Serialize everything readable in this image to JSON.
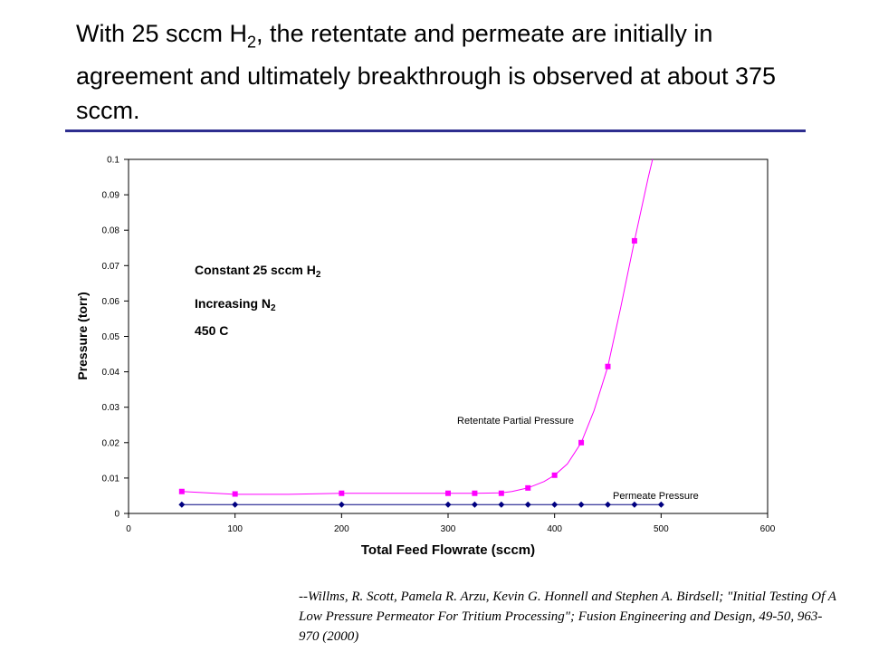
{
  "slide": {
    "title_pre": "With 25 sccm H",
    "title_sub": "2",
    "title_post": ", the retentate and permeate are initially in agreement and ultimately breakthrough is observed at about 375 sccm.",
    "citation": "--Willms, R. Scott, Pamela R. Arzu, Kevin G. Honnell and Stephen A. Birdsell; \"Initial Testing Of A Low Pressure Permeator For Tritium Processing\"; Fusion Engineering and Design, 49-50, 963-970 (2000)"
  },
  "annotations": {
    "line1_pre": "Constant 25 sccm H",
    "line1_sub": "2",
    "line2_pre": "Increasing N",
    "line2_sub": "2",
    "line3": "450 C"
  },
  "chart_data": {
    "type": "scatter",
    "xlabel": "Total Feed Flowrate (sccm)",
    "ylabel": "Pressure (torr)",
    "xlim": [
      0,
      600
    ],
    "ylim": [
      0,
      0.1
    ],
    "xticks": [
      0,
      100,
      200,
      300,
      400,
      500,
      600
    ],
    "yticks": [
      0,
      0.01,
      0.02,
      0.03,
      0.04,
      0.05,
      0.06,
      0.07,
      0.08,
      0.09,
      0.1
    ],
    "grid": false,
    "series": [
      {
        "name": "Retentate Partial Pressure",
        "color": "#ff00ff",
        "marker": "square",
        "x": [
          50,
          100,
          200,
          300,
          325,
          350,
          375,
          400,
          425,
          450,
          475,
          500
        ],
        "y": [
          0.0062,
          0.0055,
          0.0057,
          0.0057,
          0.0057,
          0.0057,
          0.0072,
          0.0108,
          0.02,
          0.0415,
          0.077,
          null
        ],
        "curve_x": [
          50,
          100,
          150,
          200,
          250,
          300,
          325,
          350,
          360,
          375,
          390,
          400,
          412,
          425,
          437,
          450,
          462,
          475,
          488,
          492
        ],
        "curve_y": [
          0.0062,
          0.0054,
          0.0054,
          0.0057,
          0.0057,
          0.0057,
          0.0057,
          0.0058,
          0.0062,
          0.0072,
          0.009,
          0.0108,
          0.014,
          0.02,
          0.029,
          0.0415,
          0.058,
          0.077,
          0.095,
          0.1
        ]
      },
      {
        "name": "Permeate Pressure",
        "color": "#000080",
        "marker": "diamond",
        "x": [
          50,
          100,
          200,
          300,
          325,
          350,
          375,
          400,
          425,
          450,
          475,
          500
        ],
        "y": [
          0.0025,
          0.0025,
          0.0025,
          0.0025,
          0.0025,
          0.0025,
          0.0025,
          0.0025,
          0.0025,
          0.0025,
          0.0025,
          0.0025
        ]
      }
    ]
  }
}
